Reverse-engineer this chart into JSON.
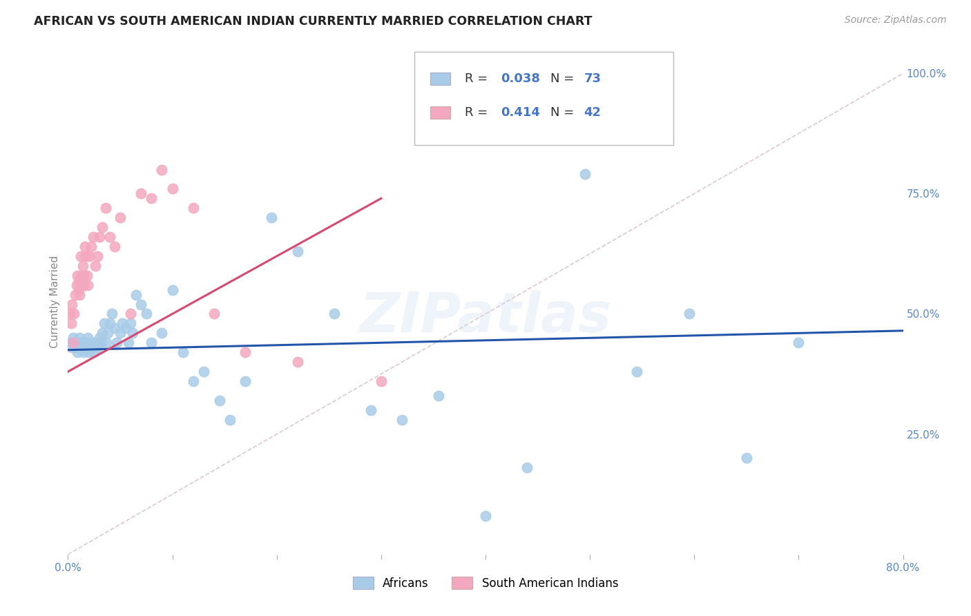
{
  "title": "AFRICAN VS SOUTH AMERICAN INDIAN CURRENTLY MARRIED CORRELATION CHART",
  "source": "Source: ZipAtlas.com",
  "ylabel": "Currently Married",
  "xlim": [
    0.0,
    0.8
  ],
  "ylim": [
    0.0,
    1.05
  ],
  "xticks": [
    0.0,
    0.1,
    0.2,
    0.3,
    0.4,
    0.5,
    0.6,
    0.7,
    0.8
  ],
  "xticklabels": [
    "0.0%",
    "",
    "",
    "",
    "",
    "",
    "",
    "",
    "80.0%"
  ],
  "yticks_right": [
    0.25,
    0.5,
    0.75,
    1.0
  ],
  "yticklabels_right": [
    "25.0%",
    "50.0%",
    "75.0%",
    "100.0%"
  ],
  "african_R": 0.038,
  "african_N": 73,
  "sa_indian_R": 0.414,
  "sa_indian_N": 42,
  "african_color": "#a8cce8",
  "sa_indian_color": "#f4a8c0",
  "african_line_color": "#2255aa",
  "sa_indian_line_color": "#d84870",
  "diagonal_color": "#ddc8d0",
  "background_color": "#ffffff",
  "grid_color": "#d4d4e4",
  "legend_label_african": "Africans",
  "legend_label_sa": "South American Indians",
  "watermark": "ZIPatlas",
  "african_x": [
    0.003,
    0.004,
    0.005,
    0.006,
    0.007,
    0.008,
    0.009,
    0.01,
    0.01,
    0.011,
    0.012,
    0.012,
    0.013,
    0.014,
    0.015,
    0.015,
    0.016,
    0.017,
    0.018,
    0.018,
    0.019,
    0.02,
    0.02,
    0.021,
    0.022,
    0.023,
    0.024,
    0.025,
    0.026,
    0.027,
    0.028,
    0.03,
    0.03,
    0.032,
    0.033,
    0.035,
    0.037,
    0.038,
    0.04,
    0.042,
    0.045,
    0.047,
    0.05,
    0.052,
    0.055,
    0.058,
    0.06,
    0.062,
    0.065,
    0.07,
    0.075,
    0.08,
    0.09,
    0.1,
    0.11,
    0.12,
    0.13,
    0.145,
    0.155,
    0.17,
    0.195,
    0.22,
    0.255,
    0.29,
    0.32,
    0.355,
    0.4,
    0.44,
    0.495,
    0.545,
    0.595,
    0.65,
    0.7
  ],
  "african_y": [
    0.44,
    0.43,
    0.45,
    0.44,
    0.43,
    0.44,
    0.42,
    0.44,
    0.43,
    0.45,
    0.43,
    0.44,
    0.44,
    0.43,
    0.42,
    0.44,
    0.43,
    0.44,
    0.44,
    0.43,
    0.45,
    0.43,
    0.42,
    0.44,
    0.43,
    0.44,
    0.43,
    0.42,
    0.44,
    0.44,
    0.43,
    0.44,
    0.45,
    0.44,
    0.46,
    0.48,
    0.44,
    0.46,
    0.48,
    0.5,
    0.47,
    0.44,
    0.46,
    0.48,
    0.47,
    0.44,
    0.48,
    0.46,
    0.54,
    0.52,
    0.5,
    0.44,
    0.46,
    0.55,
    0.42,
    0.36,
    0.38,
    0.32,
    0.28,
    0.36,
    0.7,
    0.63,
    0.5,
    0.3,
    0.28,
    0.33,
    0.08,
    0.18,
    0.79,
    0.38,
    0.5,
    0.2,
    0.44
  ],
  "sa_indian_x": [
    0.002,
    0.003,
    0.004,
    0.005,
    0.006,
    0.007,
    0.008,
    0.009,
    0.01,
    0.01,
    0.011,
    0.012,
    0.012,
    0.013,
    0.014,
    0.015,
    0.015,
    0.016,
    0.017,
    0.018,
    0.019,
    0.02,
    0.022,
    0.024,
    0.026,
    0.028,
    0.03,
    0.033,
    0.036,
    0.04,
    0.045,
    0.05,
    0.06,
    0.07,
    0.08,
    0.09,
    0.1,
    0.12,
    0.14,
    0.17,
    0.22,
    0.3
  ],
  "sa_indian_y": [
    0.5,
    0.48,
    0.52,
    0.44,
    0.5,
    0.54,
    0.56,
    0.58,
    0.57,
    0.55,
    0.54,
    0.56,
    0.62,
    0.58,
    0.6,
    0.56,
    0.58,
    0.64,
    0.62,
    0.58,
    0.56,
    0.62,
    0.64,
    0.66,
    0.6,
    0.62,
    0.66,
    0.68,
    0.72,
    0.66,
    0.64,
    0.7,
    0.5,
    0.75,
    0.74,
    0.8,
    0.76,
    0.72,
    0.5,
    0.42,
    0.4,
    0.36
  ],
  "african_trend_x": [
    0.0,
    0.8
  ],
  "african_trend_y": [
    0.425,
    0.465
  ],
  "sa_trend_x": [
    0.0,
    0.3
  ],
  "sa_trend_y": [
    0.38,
    0.74
  ]
}
